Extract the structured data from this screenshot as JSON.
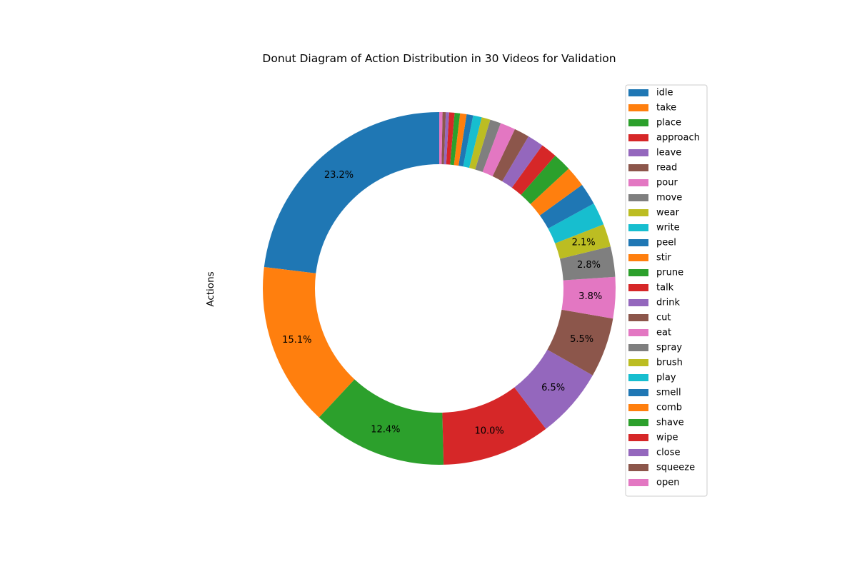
{
  "chart_data": {
    "type": "pie",
    "donut": true,
    "title": "Donut Diagram of Action Distribution in 30 Videos for Validation",
    "ylabel": "Actions",
    "start_angle": 90,
    "direction": "counterclockwise",
    "legend_position": "right",
    "labels": [
      "idle",
      "take",
      "place",
      "approach",
      "leave",
      "read",
      "pour",
      "move",
      "wear",
      "write",
      "peel",
      "stir",
      "prune",
      "talk",
      "drink",
      "cut",
      "eat",
      "spray",
      "brush",
      "play",
      "smell",
      "comb",
      "shave",
      "wipe",
      "close",
      "squeeze",
      "open"
    ],
    "values": [
      23.2,
      15.1,
      12.4,
      10.0,
      6.5,
      5.5,
      3.8,
      2.8,
      2.1,
      2.1,
      2.0,
      1.9,
      1.7,
      1.5,
      1.5,
      1.4,
      1.4,
      1.0,
      0.8,
      0.8,
      0.6,
      0.6,
      0.5,
      0.5,
      0.3,
      0.3,
      0.3
    ],
    "data_labels": [
      "23.2%",
      "15.1%",
      "12.4%",
      "10.0%",
      "6.5%",
      "5.5%",
      "3.8%",
      "2.8%",
      "2.1%",
      "",
      "",
      "",
      "",
      "",
      "",
      "",
      "",
      "",
      "",
      "",
      "",
      "",
      "",
      "",
      "",
      "",
      ""
    ],
    "colors": [
      "#1f77b4",
      "#ff7f0e",
      "#2ca02c",
      "#d62728",
      "#9467bd",
      "#8c564b",
      "#e377c2",
      "#7f7f7f",
      "#bcbd22",
      "#17becf",
      "#1f77b4",
      "#ff7f0e",
      "#2ca02c",
      "#d62728",
      "#9467bd",
      "#8c564b",
      "#e377c2",
      "#7f7f7f",
      "#bcbd22",
      "#17becf",
      "#1f77b4",
      "#ff7f0e",
      "#2ca02c",
      "#d62728",
      "#9467bd",
      "#8c564b",
      "#e377c2"
    ]
  }
}
